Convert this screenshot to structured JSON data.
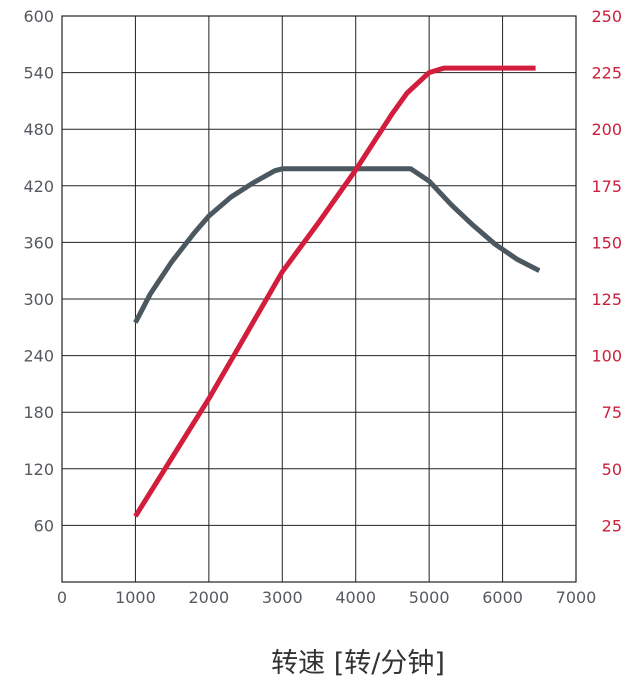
{
  "chart_data": {
    "type": "line",
    "xlabel": "转速 [转/分钟]",
    "x_ticks": [
      "0",
      "1000",
      "2000",
      "3000",
      "4000",
      "5000",
      "6000",
      "7000"
    ],
    "xlim": [
      0,
      7000
    ],
    "y_left_ticks": [
      "60",
      "120",
      "180",
      "240",
      "300",
      "360",
      "420",
      "480",
      "540",
      "600"
    ],
    "y_left_lim": [
      0,
      600
    ],
    "y_right_ticks": [
      "25",
      "50",
      "75",
      "100",
      "125",
      "150",
      "175",
      "200",
      "225",
      "250"
    ],
    "y_right_lim": [
      0,
      250
    ],
    "grid": true,
    "series": [
      {
        "axis": "left",
        "color": "#4b5860",
        "x": [
          1000,
          1200,
          1500,
          1800,
          2000,
          2300,
          2600,
          2900,
          3000,
          3500,
          4000,
          4500,
          4750,
          5000,
          5300,
          5600,
          5900,
          6200,
          6500
        ],
        "y": [
          275,
          305,
          340,
          370,
          388,
          408,
          423,
          436,
          438,
          438,
          438,
          438,
          438,
          425,
          400,
          378,
          358,
          342,
          330
        ]
      },
      {
        "axis": "right",
        "color": "#d21e3c",
        "x": [
          1000,
          1500,
          2000,
          2500,
          3000,
          3500,
          4000,
          4500,
          4700,
          5000,
          5200,
          5500,
          6000,
          6450
        ],
        "y": [
          29,
          55,
          81,
          109,
          137,
          159,
          182,
          207,
          216,
          225,
          227,
          227,
          227,
          227
        ]
      }
    ]
  }
}
